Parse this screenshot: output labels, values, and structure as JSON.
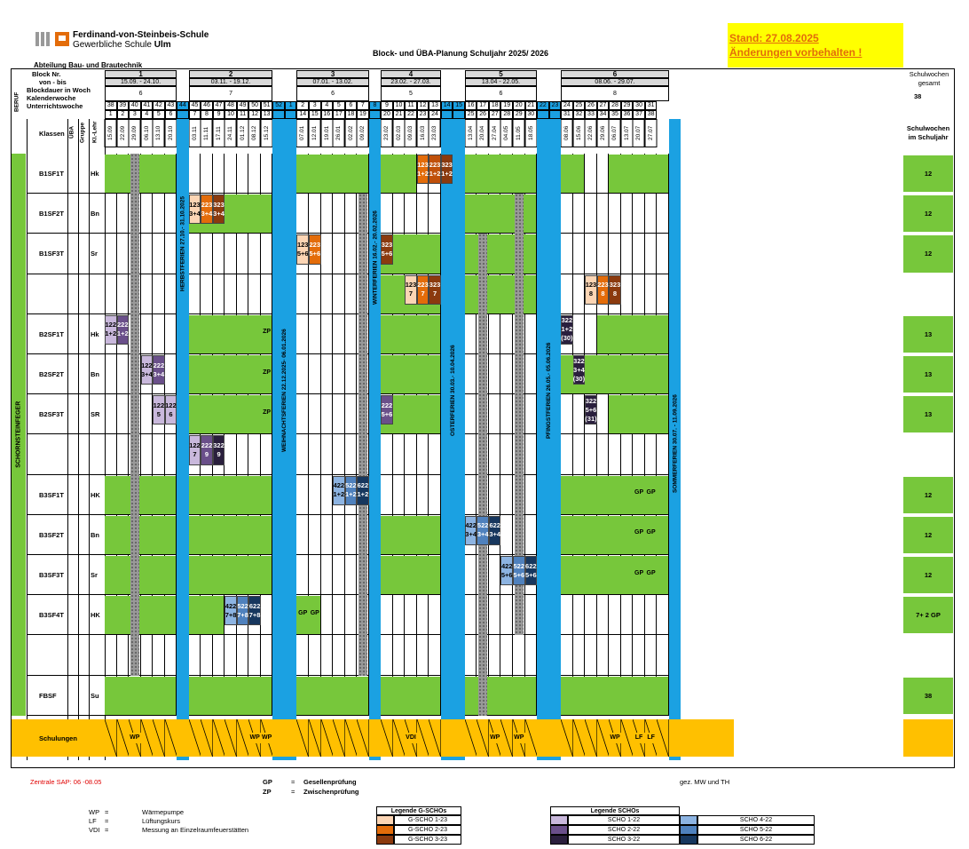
{
  "header": {
    "school1": "Ferdinand-von-Steinbeis-Schule",
    "school2_pre": "Gewerbliche Schule ",
    "school2_bold": "Ulm",
    "title": "Block- und ÜBA-Planung Schuljahr 2025/ 2026",
    "stand": "Stand: 27.08.2025",
    "aenderung": "Änderungen vorbehalten !",
    "abteilung": "Abteilung Bau- und Brautechnik"
  },
  "labels": {
    "block_nr": "Block Nr.",
    "von_bis": "von - bis",
    "blockdauer": "Blockdauer in Woch",
    "kalenderwoche": "Kalenderwoche",
    "unterrichtswoche": "Unterrichtswoche",
    "klassen": "Klassen",
    "uba": "ÜBA",
    "gruppe": "Gruppe",
    "kl_lehr": "Kl.-Lehr",
    "beruf": "BERUF",
    "schornsteinfeger": "SCHORNSTEINFEGER",
    "schulwochen_gesamt": "Schulwochen gesamt",
    "schulwochen_jahr": "Schulwochen im Schuljahr",
    "total": "38",
    "schulungen": "Schulungen"
  },
  "blocks": [
    {
      "nr": "1",
      "range": "15.09. - 24.10.",
      "dauer": "6"
    },
    {
      "nr": "2",
      "range": "03.11. - 19.12.",
      "dauer": "7"
    },
    {
      "nr": "3",
      "range": "07.01. - 13.02.",
      "dauer": "6"
    },
    {
      "nr": "4",
      "range": "23.02. - 27.03.",
      "dauer": "5"
    },
    {
      "nr": "5",
      "range": "13.04 - 22.05.",
      "dauer": "6"
    },
    {
      "nr": "6",
      "range": "08.06. - 29.07.",
      "dauer": "8"
    }
  ],
  "weeks": [
    {
      "kw": "38",
      "uw": "1",
      "d": "15.09"
    },
    {
      "kw": "39",
      "uw": "2",
      "d": "22.09"
    },
    {
      "kw": "40",
      "uw": "3",
      "d": "29.09"
    },
    {
      "kw": "41",
      "uw": "4",
      "d": "06.10"
    },
    {
      "kw": "42",
      "uw": "5",
      "d": "13.10"
    },
    {
      "kw": "43",
      "uw": "6",
      "d": "20.10"
    },
    {
      "kw": "44",
      "uw": "",
      "d": ""
    },
    {
      "kw": "45",
      "uw": "7",
      "d": "03.11"
    },
    {
      "kw": "46",
      "uw": "8",
      "d": "11.11"
    },
    {
      "kw": "47",
      "uw": "9",
      "d": "17.11"
    },
    {
      "kw": "48",
      "uw": "10",
      "d": "24.11"
    },
    {
      "kw": "49",
      "uw": "11",
      "d": "01.12"
    },
    {
      "kw": "50",
      "uw": "12",
      "d": "08.12"
    },
    {
      "kw": "51",
      "uw": "13",
      "d": "15.12"
    },
    {
      "kw": "52",
      "uw": "",
      "d": ""
    },
    {
      "kw": "1",
      "uw": "",
      "d": ""
    },
    {
      "kw": "2",
      "uw": "14",
      "d": "07.01"
    },
    {
      "kw": "3",
      "uw": "15",
      "d": "12.01"
    },
    {
      "kw": "4",
      "uw": "16",
      "d": "19.01"
    },
    {
      "kw": "5",
      "uw": "17",
      "d": "26.01"
    },
    {
      "kw": "6",
      "uw": "18",
      "d": "02.02"
    },
    {
      "kw": "7",
      "uw": "19",
      "d": "09.02"
    },
    {
      "kw": "8",
      "uw": "",
      "d": ""
    },
    {
      "kw": "9",
      "uw": "20",
      "d": "23.02"
    },
    {
      "kw": "10",
      "uw": "21",
      "d": "02.03"
    },
    {
      "kw": "11",
      "uw": "22",
      "d": "09.03"
    },
    {
      "kw": "12",
      "uw": "23",
      "d": "16.03"
    },
    {
      "kw": "13",
      "uw": "24",
      "d": "23.03"
    },
    {
      "kw": "14",
      "uw": "",
      "d": ""
    },
    {
      "kw": "15",
      "uw": "",
      "d": ""
    },
    {
      "kw": "16",
      "uw": "25",
      "d": "13.04"
    },
    {
      "kw": "17",
      "uw": "26",
      "d": "20.04"
    },
    {
      "kw": "18",
      "uw": "27",
      "d": "27.04"
    },
    {
      "kw": "19",
      "uw": "28",
      "d": "04.05"
    },
    {
      "kw": "20",
      "uw": "29",
      "d": "11.05"
    },
    {
      "kw": "21",
      "uw": "30",
      "d": "18.05"
    },
    {
      "kw": "22",
      "uw": "",
      "d": ""
    },
    {
      "kw": "23",
      "uw": "",
      "d": ""
    },
    {
      "kw": "24",
      "uw": "31",
      "d": "08.06"
    },
    {
      "kw": "25",
      "uw": "32",
      "d": "15.06"
    },
    {
      "kw": "26",
      "uw": "33",
      "d": "22.06"
    },
    {
      "kw": "27",
      "uw": "34",
      "d": "29.06"
    },
    {
      "kw": "28",
      "uw": "35",
      "d": "06.07"
    },
    {
      "kw": "29",
      "uw": "36",
      "d": "13.07"
    },
    {
      "kw": "30",
      "uw": "37",
      "d": "20.07"
    },
    {
      "kw": "31",
      "uw": "38",
      "d": "27.07"
    }
  ],
  "holidays": [
    "HERBSTFERIEN 27.10.- 31.10.2025",
    "WEIHNACHTSFERIEN 22.12.2025- 06.01.2026",
    "WINTERFERIEN 16.02.- 20.02.2026",
    "OSTERFERIEN 30.03.- 10.04.2026",
    "PFINGSTFERIEN 26.05.- 05.06.2026",
    "SOMMERFERIEN 30.07. - 11.09.2026"
  ],
  "classes": [
    {
      "name": "B1SF1T",
      "lehr": "Hk",
      "total": "12"
    },
    {
      "name": "B1SF2T",
      "lehr": "Bn",
      "total": "12"
    },
    {
      "name": "B1SF3T",
      "lehr": "Sr",
      "total": "12"
    },
    {
      "name": "",
      "lehr": "",
      "total": ""
    },
    {
      "name": "B2SF1T",
      "lehr": "Hk",
      "total": "13"
    },
    {
      "name": "B2SF2T",
      "lehr": "Bn",
      "total": "13"
    },
    {
      "name": "B2SF3T",
      "lehr": "SR",
      "total": "13"
    },
    {
      "name": "",
      "lehr": "",
      "total": ""
    },
    {
      "name": "B3SF1T",
      "lehr": "HK",
      "total": "12"
    },
    {
      "name": "B3SF2T",
      "lehr": "Bn",
      "total": "12"
    },
    {
      "name": "B3SF3T",
      "lehr": "Sr",
      "total": "12"
    },
    {
      "name": "B3SF4T",
      "lehr": "HK",
      "total": "7+ 2 GP"
    },
    {
      "name": "",
      "lehr": "",
      "total": ""
    },
    {
      "name": "FBSF",
      "lehr": "Su",
      "total": "38"
    }
  ],
  "scho": [
    {
      "r": 0,
      "c": 26,
      "t1": "123",
      "t2": "1+2",
      "col": "#e36c0a"
    },
    {
      "r": 0,
      "c": 27,
      "t1": "223",
      "t2": "1+2",
      "col": "#c0500a"
    },
    {
      "r": 0,
      "c": 28,
      "t1": "323",
      "t2": "1+2",
      "col": "#8b3a0e"
    },
    {
      "r": 1,
      "c": 7,
      "t1": "123",
      "t2": "3+4",
      "col": "#fcd5b4"
    },
    {
      "r": 1,
      "c": 8,
      "t1": "223",
      "t2": "3+4",
      "col": "#e36c0a"
    },
    {
      "r": 1,
      "c": 9,
      "t1": "323",
      "t2": "3+4",
      "col": "#8b3a0e"
    },
    {
      "r": 2,
      "c": 16,
      "t1": "123",
      "t2": "5+6",
      "col": "#fcd5b4"
    },
    {
      "r": 2,
      "c": 17,
      "t1": "223",
      "t2": "5+6",
      "col": "#e36c0a"
    },
    {
      "r": 2,
      "c": 23,
      "t1": "323",
      "t2": "5+6",
      "col": "#8b3a0e"
    },
    {
      "r": 3,
      "c": 25,
      "t1": "123",
      "t2": "7",
      "col": "#fcd5b4"
    },
    {
      "r": 3,
      "c": 26,
      "t1": "223",
      "t2": "7",
      "col": "#e36c0a"
    },
    {
      "r": 3,
      "c": 27,
      "t1": "323",
      "t2": "7",
      "col": "#8b3a0e"
    },
    {
      "r": 3,
      "c": 40,
      "t1": "123",
      "t2": "8",
      "col": "#fcd5b4"
    },
    {
      "r": 3,
      "c": 41,
      "t1": "223",
      "t2": "8",
      "col": "#e36c0a"
    },
    {
      "r": 3,
      "c": 42,
      "t1": "323",
      "t2": "8",
      "col": "#8b3a0e"
    },
    {
      "r": 4,
      "c": 0,
      "t1": "122",
      "t2": "1+2",
      "col": "#c9b8dc"
    },
    {
      "r": 4,
      "c": 1,
      "t1": "222",
      "t2": "1+2",
      "col": "#6a4f8a"
    },
    {
      "r": 4,
      "c": 38,
      "t1": "322",
      "t2": "1+2",
      "t3": "(30)",
      "col": "#2a1f3d"
    },
    {
      "r": 5,
      "c": 3,
      "t1": "122",
      "t2": "3+4",
      "col": "#c9b8dc"
    },
    {
      "r": 5,
      "c": 4,
      "t1": "222",
      "t2": "3+4",
      "col": "#6a4f8a"
    },
    {
      "r": 5,
      "c": 39,
      "t1": "322",
      "t2": "3+4",
      "t3": "(30)",
      "col": "#2a1f3d"
    },
    {
      "r": 6,
      "c": 4,
      "t1": "122",
      "t2": "5",
      "col": "#c9b8dc"
    },
    {
      "r": 6,
      "c": 5,
      "t1": "122",
      "t2": "6",
      "col": "#c9b8dc"
    },
    {
      "r": 6,
      "c": 23,
      "t1": "222",
      "t2": "5+6",
      "col": "#6a4f8a"
    },
    {
      "r": 6,
      "c": 40,
      "t1": "322",
      "t2": "5+6",
      "t3": "(31)",
      "col": "#2a1f3d"
    },
    {
      "r": 7,
      "c": 7,
      "t1": "122",
      "t2": "7",
      "col": "#c9b8dc"
    },
    {
      "r": 7,
      "c": 8,
      "t1": "222",
      "t2": "9",
      "col": "#6a4f8a"
    },
    {
      "r": 7,
      "c": 9,
      "t1": "322",
      "t2": "9",
      "col": "#2a1f3d"
    },
    {
      "r": 8,
      "c": 19,
      "t1": "422",
      "t2": "1+2",
      "col": "#8db4e2"
    },
    {
      "r": 8,
      "c": 20,
      "t1": "522",
      "t2": "1+2",
      "col": "#4f81bd"
    },
    {
      "r": 8,
      "c": 21,
      "t1": "622",
      "t2": "1+2",
      "col": "#17375e"
    },
    {
      "r": 9,
      "c": 30,
      "t1": "422",
      "t2": "3+4",
      "col": "#8db4e2"
    },
    {
      "r": 9,
      "c": 31,
      "t1": "522",
      "t2": "3+4",
      "col": "#4f81bd"
    },
    {
      "r": 9,
      "c": 32,
      "t1": "622",
      "t2": "3+4",
      "col": "#17375e"
    },
    {
      "r": 10,
      "c": 33,
      "t1": "422",
      "t2": "5+6",
      "col": "#8db4e2"
    },
    {
      "r": 10,
      "c": 34,
      "t1": "522",
      "t2": "5+6",
      "col": "#4f81bd"
    },
    {
      "r": 10,
      "c": 35,
      "t1": "622",
      "t2": "5+6",
      "col": "#17375e"
    },
    {
      "r": 11,
      "c": 10,
      "t1": "422",
      "t2": "7+8",
      "col": "#8db4e2"
    },
    {
      "r": 11,
      "c": 11,
      "t1": "522",
      "t2": "7+8",
      "col": "#4f81bd"
    },
    {
      "r": 11,
      "c": 12,
      "t1": "622",
      "t2": "7+8",
      "col": "#17375e"
    }
  ],
  "marks": [
    {
      "r": 4,
      "c": 13,
      "t": "ZP"
    },
    {
      "r": 5,
      "c": 13,
      "t": "ZP"
    },
    {
      "r": 6,
      "c": 13,
      "t": "ZP"
    },
    {
      "r": 8,
      "c": 44,
      "t": "GP"
    },
    {
      "r": 8,
      "c": 45,
      "t": "GP"
    },
    {
      "r": 9,
      "c": 44,
      "t": "GP"
    },
    {
      "r": 9,
      "c": 45,
      "t": "GP"
    },
    {
      "r": 10,
      "c": 44,
      "t": "GP"
    },
    {
      "r": 10,
      "c": 45,
      "t": "GP"
    },
    {
      "r": 11,
      "c": 16,
      "t": "GP"
    },
    {
      "r": 11,
      "c": 17,
      "t": "GP"
    }
  ],
  "schulungen": [
    {
      "c": 2,
      "t": "WP"
    },
    {
      "c": 12,
      "t": "WP"
    },
    {
      "c": 13,
      "t": "WP"
    },
    {
      "c": 25,
      "t": "VDI"
    },
    {
      "c": 32,
      "t": "WP"
    },
    {
      "c": 34,
      "t": "WP"
    },
    {
      "c": 42,
      "t": "WP"
    },
    {
      "c": 44,
      "t": "LF"
    },
    {
      "c": 45,
      "t": "LF"
    }
  ],
  "footer": {
    "sap": "Zentrale SAP: 06 -08.05",
    "gp_k": "GP",
    "gp_eq": "=",
    "gp_v": "Gesellenprüfung",
    "zp_k": "ZP",
    "zp_eq": "=",
    "zp_v": "Zwischenprüfung",
    "gez": "gez.  MW und TH",
    "abbr": [
      {
        "k": "WP",
        "eq": "=",
        "v": "Wärmepumpe"
      },
      {
        "k": "LF",
        "eq": "=",
        "v": "Lüftungskurs"
      },
      {
        "k": "VDI",
        "eq": "=",
        "v": "Messung an Einzelraumfeuerstätten"
      }
    ],
    "leg_g_title": "Legende G-SCHOs",
    "leg_g": [
      {
        "t": "G-SCHO 1-23",
        "c": "#fcd5b4"
      },
      {
        "t": "G-SCHO 2-23",
        "c": "#e36c0a"
      },
      {
        "t": "G-SCHO 3-23",
        "c": "#8b3a0e"
      }
    ],
    "leg_s_title": "Legende SCHOs",
    "leg_s": [
      {
        "t": "SCHO 1-22",
        "c": "#c9b8dc",
        "t2": "SCHO 4-22",
        "c2": "#8db4e2"
      },
      {
        "t": "SCHO 2-22",
        "c": "#6a4f8a",
        "t2": "SCHO 5-22",
        "c2": "#4f81bd"
      },
      {
        "t": "SCHO 3-22",
        "c": "#2a1f3d",
        "t2": "SCHO 6-22",
        "c2": "#17375e"
      }
    ]
  }
}
